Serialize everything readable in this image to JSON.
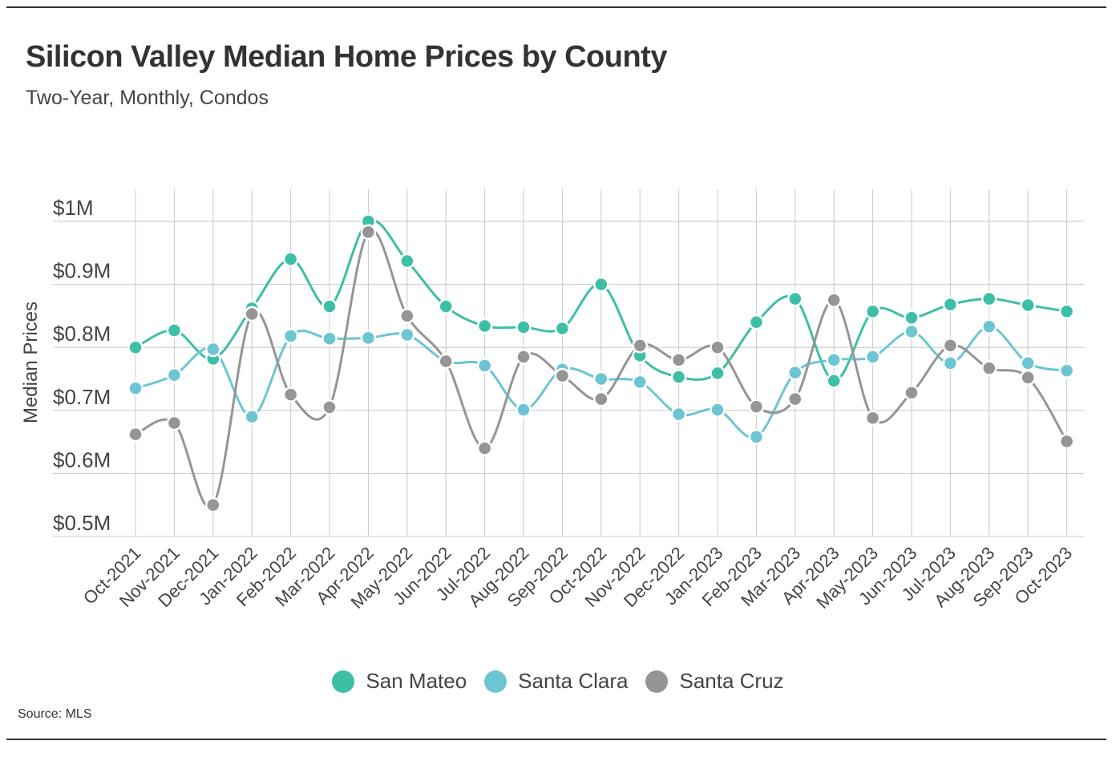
{
  "header": {
    "title": "Silicon Valley Median Home Prices by County",
    "subtitle": "Two-Year, Monthly, Condos"
  },
  "footer": {
    "source": "Source: MLS"
  },
  "colors": {
    "san_mateo": "#3dbfa6",
    "santa_clara": "#6cc5d3",
    "santa_cruz": "#959595",
    "grid": "#c8c8c8",
    "axis": "#999999"
  },
  "chart_data": {
    "type": "line",
    "title": "Silicon Valley Median Home Prices by County",
    "subtitle": "Two-Year, Monthly, Condos",
    "xlabel": "",
    "ylabel": "Median Prices",
    "ylim": [
      0.5,
      1.0
    ],
    "yticks": [
      0.5,
      0.6,
      0.7,
      0.8,
      0.9,
      1.0
    ],
    "ytick_labels": [
      "$0.5M",
      "$0.6M",
      "$0.7M",
      "$0.8M",
      "$0.9M",
      "$1M"
    ],
    "grid": true,
    "legend_position": "bottom-center",
    "categories": [
      "Oct-2021",
      "Nov-2021",
      "Dec-2021",
      "Jan-2022",
      "Feb-2022",
      "Mar-2022",
      "Apr-2022",
      "May-2022",
      "Jun-2022",
      "Jul-2022",
      "Aug-2022",
      "Sep-2022",
      "Oct-2022",
      "Nov-2022",
      "Dec-2022",
      "Jan-2023",
      "Feb-2023",
      "Mar-2023",
      "Apr-2023",
      "May-2023",
      "Jun-2023",
      "Jul-2023",
      "Aug-2023",
      "Sep-2023",
      "Oct-2023"
    ],
    "series": [
      {
        "name": "San Mateo",
        "key": "san_mateo",
        "values": [
          0.8,
          0.827,
          0.782,
          0.862,
          0.94,
          0.865,
          1.0,
          0.937,
          0.865,
          0.834,
          0.832,
          0.83,
          0.9,
          0.787,
          0.753,
          0.759,
          0.84,
          0.877,
          0.747,
          0.857,
          0.847,
          0.868,
          0.877,
          0.867,
          0.857
        ]
      },
      {
        "name": "Santa Clara",
        "key": "santa_clara",
        "values": [
          0.735,
          0.756,
          0.797,
          0.69,
          0.818,
          0.814,
          0.815,
          0.82,
          0.778,
          0.771,
          0.701,
          0.765,
          0.75,
          0.745,
          0.694,
          0.701,
          0.658,
          0.76,
          0.78,
          0.785,
          0.825,
          0.775,
          0.833,
          0.775,
          0.763
        ]
      },
      {
        "name": "Santa Cruz",
        "key": "santa_cruz",
        "values": [
          0.662,
          0.68,
          0.55,
          0.853,
          0.725,
          0.705,
          0.983,
          0.85,
          0.778,
          0.64,
          0.785,
          0.755,
          0.718,
          0.803,
          0.78,
          0.8,
          0.706,
          0.718,
          0.875,
          0.688,
          0.728,
          0.803,
          0.767,
          0.752,
          0.651
        ]
      }
    ]
  }
}
